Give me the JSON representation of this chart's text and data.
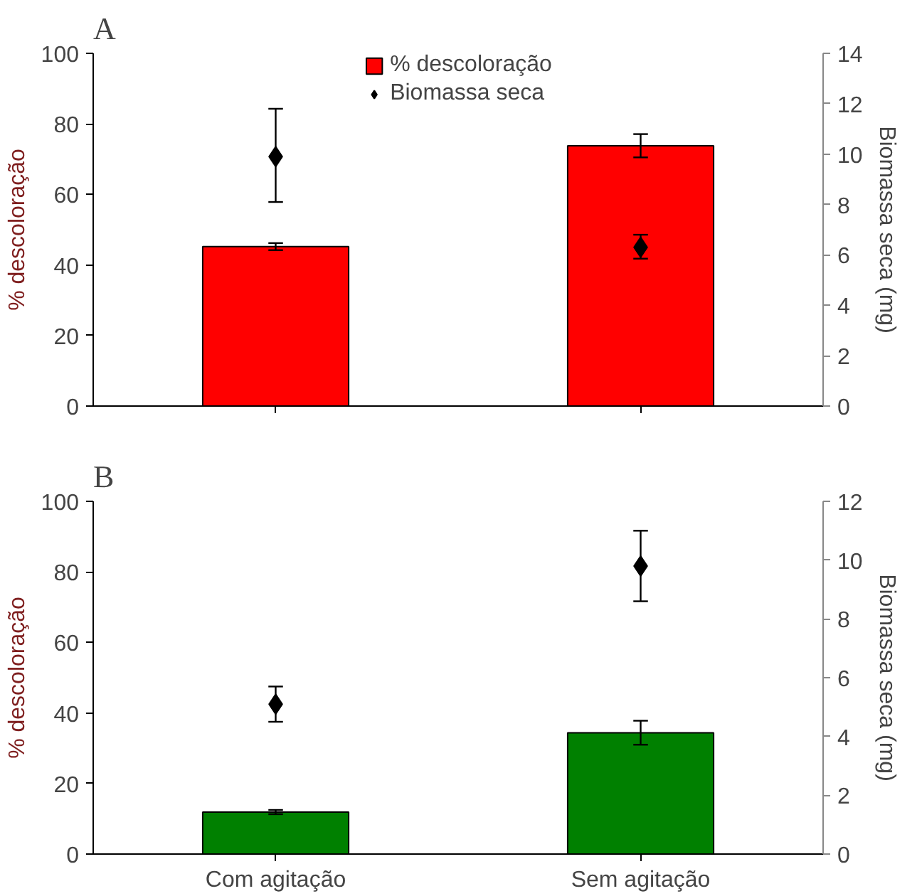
{
  "chart_data": [
    {
      "type": "bar",
      "title": "A",
      "ylabel": "% descoloração",
      "y2label": "Biomassa seca (mg)",
      "categories": [
        null,
        null
      ],
      "legend": "top",
      "grid": false,
      "ylim": [
        0,
        100
      ],
      "yticks": [
        0,
        20,
        40,
        60,
        80,
        100
      ],
      "y2lim": [
        0,
        14
      ],
      "y2ticks": [
        0,
        2,
        4,
        6,
        8,
        10,
        12,
        14
      ],
      "series": [
        {
          "name": "% descoloração",
          "color": "#ff0000",
          "values": [
            45.2,
            73.8
          ],
          "errors": [
            1,
            3.3
          ]
        },
        {
          "name": "Biomassa seca",
          "type": "scatter",
          "axis": "y2",
          "marker": "diamond",
          "color": "#000000",
          "values": [
            9.9,
            6.3
          ],
          "errors": [
            [
              8.1,
              11.8
            ],
            [
              5.85,
              6.8
            ]
          ]
        }
      ]
    },
    {
      "type": "bar",
      "title": "B",
      "ylabel": "% descoloração",
      "y2label": "Biomassa seca (mg)",
      "categories": [
        "Com agitação",
        "Sem agitação"
      ],
      "grid": false,
      "ylim": [
        0,
        100
      ],
      "yticks": [
        0,
        20,
        40,
        60,
        80,
        100
      ],
      "y2lim": [
        0,
        12
      ],
      "y2ticks": [
        0,
        2,
        4,
        6,
        8,
        10,
        12
      ],
      "series": [
        {
          "color": "#008000",
          "values": [
            11.9,
            34.4
          ],
          "errors": [
            0.6,
            3.4
          ]
        },
        {
          "type": "scatter",
          "axis": "y2",
          "marker": "diamond",
          "color": "#000000",
          "values": [
            5.1,
            9.8
          ],
          "errors": [
            [
              4.5,
              5.7
            ],
            [
              8.6,
              11.0
            ]
          ]
        }
      ]
    }
  ]
}
